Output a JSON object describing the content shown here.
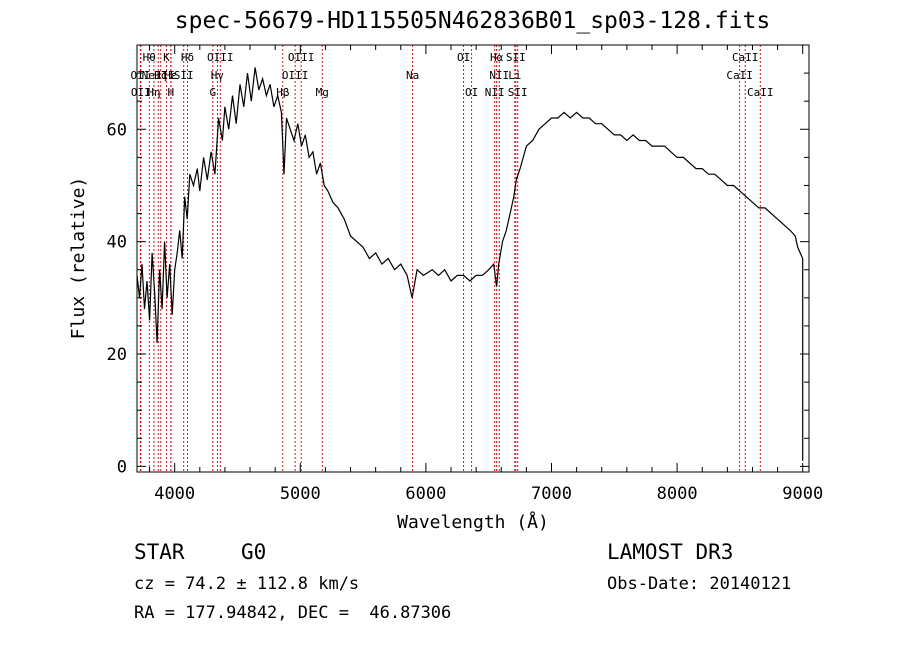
{
  "title": "spec-56679-HD115505N462836B01_sp03-128.fits",
  "info": {
    "object_class": "STAR",
    "subclass": "G0",
    "survey": "LAMOST DR3",
    "redshift": "cz = 74.2 ± 112.8 km/s",
    "obs_date": "Obs-Date: 20140121",
    "coords": "RA = 177.94842, DEC =  46.87306"
  },
  "chart_data": {
    "type": "line",
    "title": "spec-56679-HD115505N462836B01_sp03-128.fits",
    "xlabel": "Wavelength (Å)",
    "ylabel": "Flux (relative)",
    "xlim": [
      3700,
      9050
    ],
    "ylim": [
      -1,
      75
    ],
    "xticks": [
      4000,
      5000,
      6000,
      7000,
      8000,
      9000
    ],
    "yticks": [
      0,
      20,
      40,
      60
    ],
    "grid": false,
    "line_color": "#000000",
    "marker_color": "#cc0000",
    "series": [
      {
        "x": [
          3700,
          3720,
          3740,
          3760,
          3780,
          3800,
          3820,
          3840,
          3860,
          3880,
          3900,
          3920,
          3940,
          3960,
          3980,
          4000,
          4020,
          4040,
          4060,
          4080,
          4100,
          4120,
          4150,
          4180,
          4200,
          4230,
          4260,
          4290,
          4320,
          4350,
          4380,
          4400,
          4430,
          4460,
          4490,
          4520,
          4550,
          4580,
          4610,
          4640,
          4670,
          4700,
          4730,
          4760,
          4790,
          4820,
          4850,
          4870,
          4890,
          4920,
          4950,
          4980,
          5010,
          5040,
          5070,
          5100,
          5130,
          5160,
          5190,
          5220,
          5260,
          5300,
          5350,
          5400,
          5450,
          5500,
          5550,
          5600,
          5650,
          5700,
          5750,
          5800,
          5850,
          5890,
          5930,
          5980,
          6050,
          6100,
          6150,
          6200,
          6250,
          6300,
          6350,
          6400,
          6450,
          6500,
          6540,
          6563,
          6580,
          6610,
          6640,
          6670,
          6700,
          6720,
          6750,
          6800,
          6850,
          6900,
          6950,
          7000,
          7050,
          7100,
          7150,
          7200,
          7250,
          7300,
          7350,
          7400,
          7450,
          7500,
          7550,
          7600,
          7650,
          7700,
          7750,
          7800,
          7850,
          7900,
          7950,
          8000,
          8050,
          8100,
          8150,
          8200,
          8250,
          8300,
          8350,
          8400,
          8450,
          8500,
          8550,
          8600,
          8650,
          8700,
          8750,
          8800,
          8850,
          8900,
          8940,
          8960,
          8980,
          9000,
          9000
        ],
        "y": [
          34,
          30,
          36,
          28,
          33,
          26,
          38,
          31,
          22,
          35,
          28,
          40,
          30,
          36,
          27,
          35,
          38,
          42,
          37,
          48,
          44,
          52,
          50,
          53,
          49,
          55,
          51,
          56,
          52,
          62,
          58,
          64,
          60,
          66,
          61,
          68,
          64,
          70,
          65,
          71,
          67,
          69,
          66,
          68,
          64,
          66,
          63,
          52,
          62,
          60,
          58,
          61,
          57,
          59,
          55,
          56,
          52,
          54,
          50,
          49,
          47,
          46,
          44,
          41,
          40,
          39,
          37,
          38,
          36,
          37,
          35,
          36,
          34,
          30,
          35,
          34,
          35,
          34,
          35,
          33,
          34,
          34,
          33,
          34,
          34,
          35,
          36,
          32,
          36,
          40,
          42,
          45,
          48,
          51,
          53,
          57,
          58,
          60,
          61,
          62,
          62,
          63,
          62,
          63,
          62,
          62,
          61,
          61,
          60,
          59,
          59,
          58,
          59,
          58,
          58,
          57,
          57,
          57,
          56,
          55,
          55,
          54,
          53,
          53,
          52,
          52,
          51,
          50,
          50,
          49,
          48,
          47,
          46,
          46,
          45,
          44,
          43,
          42,
          41,
          39,
          38,
          37,
          1
        ]
      }
    ],
    "lines": [
      {
        "w": 3727,
        "label": "OII",
        "row": 1
      },
      {
        "w": 3730,
        "label": "OII",
        "row": 2
      },
      {
        "w": 3798,
        "label": "Hθ",
        "row": 0
      },
      {
        "w": 3835,
        "label": "Hη",
        "row": 2
      },
      {
        "w": 3869,
        "label": "NeIII",
        "row": 1
      },
      {
        "w": 3889,
        "label": "Hζ",
        "row": 1
      },
      {
        "w": 3934,
        "label": "K",
        "row": 0
      },
      {
        "w": 3969,
        "label": "H",
        "row": 2
      },
      {
        "w": 3970,
        "label": "Hε",
        "row": 1
      },
      {
        "w": 4072,
        "label": "SII",
        "row": 1
      },
      {
        "w": 4102,
        "label": "Hδ",
        "row": 0
      },
      {
        "w": 4304,
        "label": "G",
        "row": 2
      },
      {
        "w": 4340,
        "label": "Hγ",
        "row": 1
      },
      {
        "w": 4363,
        "label": "OIII",
        "row": 0
      },
      {
        "w": 4861,
        "label": "Hβ",
        "row": 2
      },
      {
        "w": 4959,
        "label": "OIII",
        "row": 1
      },
      {
        "w": 5007,
        "label": "OIII",
        "row": 0
      },
      {
        "w": 5175,
        "label": "Mg",
        "row": 2
      },
      {
        "w": 5894,
        "label": "Na",
        "row": 1
      },
      {
        "w": 6300,
        "label": "OI",
        "row": 0
      },
      {
        "w": 6364,
        "label": "OI",
        "row": 2
      },
      {
        "w": 6548,
        "label": "NII",
        "row": 2
      },
      {
        "w": 6563,
        "label": "Hα",
        "row": 0
      },
      {
        "w": 6584,
        "label": "NII",
        "row": 1
      },
      {
        "w": 6708,
        "label": "Li",
        "row": 1
      },
      {
        "w": 6716,
        "label": "SII",
        "row": 0
      },
      {
        "w": 6731,
        "label": "SII",
        "row": 2
      },
      {
        "w": 8498,
        "label": "CaII",
        "row": 1
      },
      {
        "w": 8542,
        "label": "CaII",
        "row": 0
      },
      {
        "w": 8662,
        "label": "CaII",
        "row": 2
      }
    ]
  }
}
